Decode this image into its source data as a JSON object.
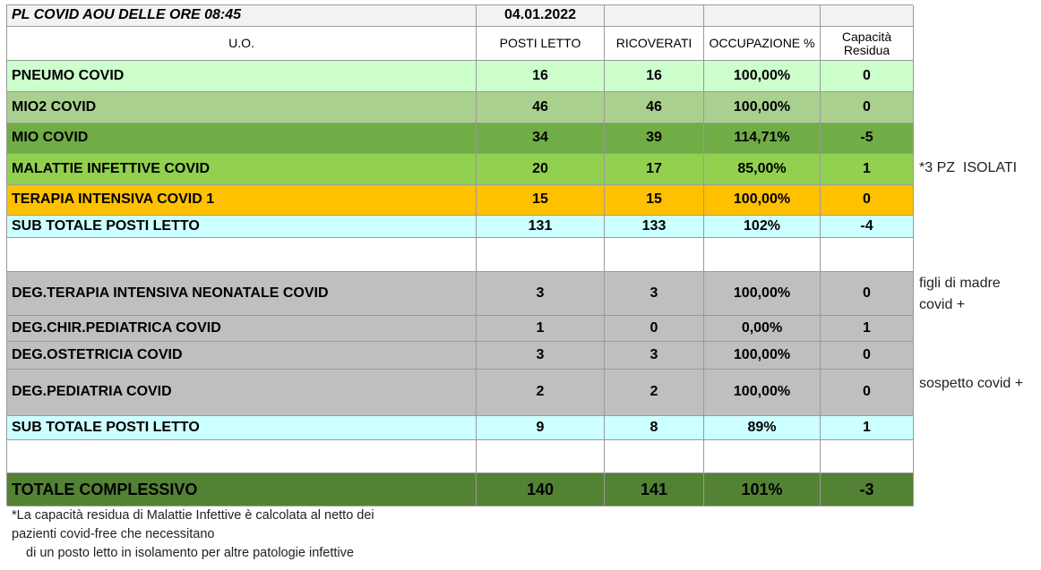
{
  "header": {
    "title": "PL COVID AOU DELLE ORE  08:45",
    "date": "04.01.2022"
  },
  "table": {
    "columns": [
      "U.O.",
      "POSTI LETTO",
      "RICOVERATI",
      "OCCUPAZIONE %",
      "Capacità Residua"
    ],
    "rows": [
      [
        "PNEUMO COVID",
        "16",
        "16",
        "100,00%",
        "0"
      ],
      [
        "MIO2 COVID",
        "46",
        "46",
        "100,00%",
        "0"
      ],
      [
        "MIO COVID",
        "34",
        "39",
        "114,71%",
        "-5"
      ],
      [
        "MALATTIE INFETTIVE COVID",
        "20",
        "17",
        "85,00%",
        "1"
      ],
      [
        "TERAPIA INTENSIVA COVID 1",
        "15",
        "15",
        "100,00%",
        "0"
      ],
      [
        "SUB TOTALE POSTI LETTO",
        "131",
        "133",
        "102%",
        "-4"
      ],
      [
        "DEG.TERAPIA INTENSIVA NEONATALE COVID",
        "3",
        "3",
        "100,00%",
        "0"
      ],
      [
        "DEG.CHIR.PEDIATRICA COVID",
        "1",
        "0",
        "0,00%",
        "1"
      ],
      [
        "DEG.OSTETRICIA COVID",
        "3",
        "3",
        "100,00%",
        "0"
      ],
      [
        "DEG.PEDIATRIA COVID",
        "2",
        "2",
        "100,00%",
        "0"
      ],
      [
        "SUB TOTALE POSTI LETTO",
        "9",
        "8",
        "89%",
        "1"
      ],
      [
        "TOTALE  COMPLESSIVO",
        "140",
        "141",
        "101%",
        "-3"
      ]
    ]
  },
  "side_notes": [
    "*3 PZ  ISOLATI",
    "figli di madre covid +",
    "sospetto covid +"
  ],
  "footnote": [
    "*La capacità residua di Malattie Infettive è calcolata al netto dei",
    "pazienti covid-free che necessitano",
    "di un posto letto in isolamento per altre patologie infettive"
  ]
}
